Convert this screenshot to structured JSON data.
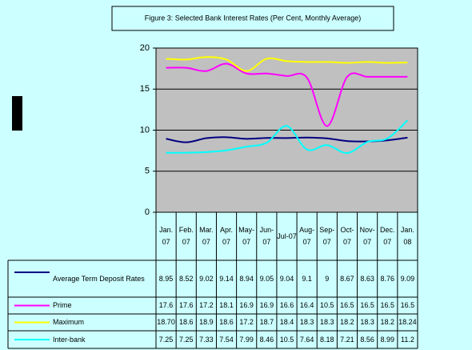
{
  "chart_data": {
    "type": "line",
    "title": "Figure 3: Selected Bank Interest Rates (Per Cent, Monthly Average)",
    "categories": [
      "Jan. 07",
      "Feb. 07",
      "Mar. 07",
      "Apr. 07",
      "May-07",
      "Jun-07",
      "Jul-07",
      "Aug-07",
      "Sep-07",
      "Oct-07",
      "Nov-07",
      "Dec. 07",
      "Jan. 08"
    ],
    "series": [
      {
        "name": "Average Term Deposit Rates",
        "color": "#000080",
        "values": [
          8.95,
          8.52,
          9.02,
          9.14,
          8.94,
          9.05,
          9.04,
          9.1,
          9,
          8.67,
          8.63,
          8.76,
          9.09
        ]
      },
      {
        "name": "Prime",
        "color": "#ff00ff",
        "values": [
          17.6,
          17.6,
          17.2,
          18.1,
          16.9,
          16.9,
          16.6,
          16.4,
          10.5,
          16.5,
          16.5,
          16.5,
          16.5
        ]
      },
      {
        "name": "Maximum",
        "color": "#ffff00",
        "values": [
          18.7,
          18.6,
          18.9,
          18.6,
          17.2,
          18.7,
          18.4,
          18.3,
          18.3,
          18.2,
          18.3,
          18.2,
          18.24
        ],
        "value_labels": [
          "18.70",
          "18.6",
          "18.9",
          "18.6",
          "17.2",
          "18.7",
          "18.4",
          "18.3",
          "18.3",
          "18.2",
          "18.3",
          "18.2",
          "18.24"
        ]
      },
      {
        "name": "Inter-bank",
        "color": "#00ffff",
        "values": [
          7.25,
          7.25,
          7.33,
          7.54,
          7.99,
          8.46,
          10.5,
          7.64,
          8.18,
          7.21,
          8.56,
          8.99,
          11.2
        ]
      }
    ],
    "ylim": [
      0,
      20
    ],
    "yticks": [
      0,
      5,
      10,
      15,
      20
    ],
    "grid": true
  }
}
